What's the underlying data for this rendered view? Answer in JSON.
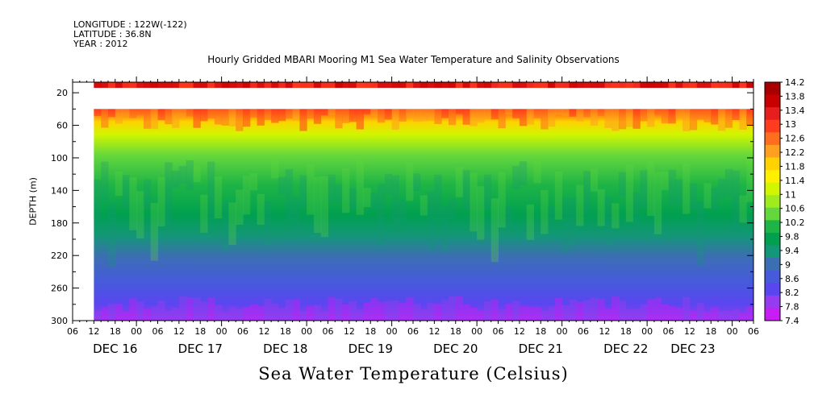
{
  "header": {
    "longitude": "LONGITUDE : 122W(-122)",
    "latitude": "LATITUDE : 36.8N",
    "year": "YEAR : 2012"
  },
  "chart_data": {
    "type": "heatmap",
    "title": "Hourly Gridded MBARI Mooring M1 Sea Water Temperature and Salinity Observations",
    "xlabel": "Sea Water Temperature (Celsius)",
    "ylabel": "DEPTH (m)",
    "x_hour_ticks": [
      "06",
      "12",
      "18",
      "00",
      "06",
      "12",
      "18",
      "00",
      "06",
      "12",
      "18",
      "00",
      "06",
      "12",
      "18",
      "00",
      "06",
      "12",
      "18",
      "00",
      "06",
      "12",
      "18",
      "00",
      "06",
      "12",
      "18",
      "00",
      "06",
      "12",
      "18",
      "00",
      "06"
    ],
    "x_day_labels": [
      "DEC 16",
      "DEC 17",
      "DEC 18",
      "DEC 19",
      "DEC 20",
      "DEC 21",
      "DEC 22",
      "DEC 23"
    ],
    "x_range_hours": [
      0,
      192
    ],
    "data_start_hour": 6,
    "y_ticks": [
      20,
      60,
      100,
      140,
      180,
      220,
      260,
      300
    ],
    "ylim": [
      300,
      7
    ],
    "color_levels": [
      "14.2",
      "13.8",
      "13.4",
      "13",
      "12.6",
      "12.2",
      "11.8",
      "11.4",
      "11",
      "10.6",
      "10.2",
      "9.8",
      "9.4",
      "9",
      "8.6",
      "8.2",
      "7.8",
      "7.4"
    ],
    "color_scale": [
      "#a80000",
      "#c80000",
      "#e61e1e",
      "#ff3c1e",
      "#ff6e1e",
      "#ffa01e",
      "#ffd200",
      "#fff000",
      "#d2f500",
      "#a0eb1e",
      "#64d73c",
      "#1eb446",
      "#00a050",
      "#149678",
      "#3c6eb4",
      "#465adc",
      "#5a46f0",
      "#963cf0",
      "#c81ef5"
    ],
    "depth_profile": [
      {
        "depth": 10,
        "value": 13.7
      },
      {
        "depth": 40,
        "value": 12.4
      },
      {
        "depth": 60,
        "value": 11.3
      },
      {
        "depth": 100,
        "value": 10.5
      },
      {
        "depth": 140,
        "value": 9.9
      },
      {
        "depth": 180,
        "value": 9.4
      },
      {
        "depth": 220,
        "value": 8.6
      },
      {
        "depth": 260,
        "value": 8.1
      },
      {
        "depth": 300,
        "value": 7.7
      }
    ]
  }
}
